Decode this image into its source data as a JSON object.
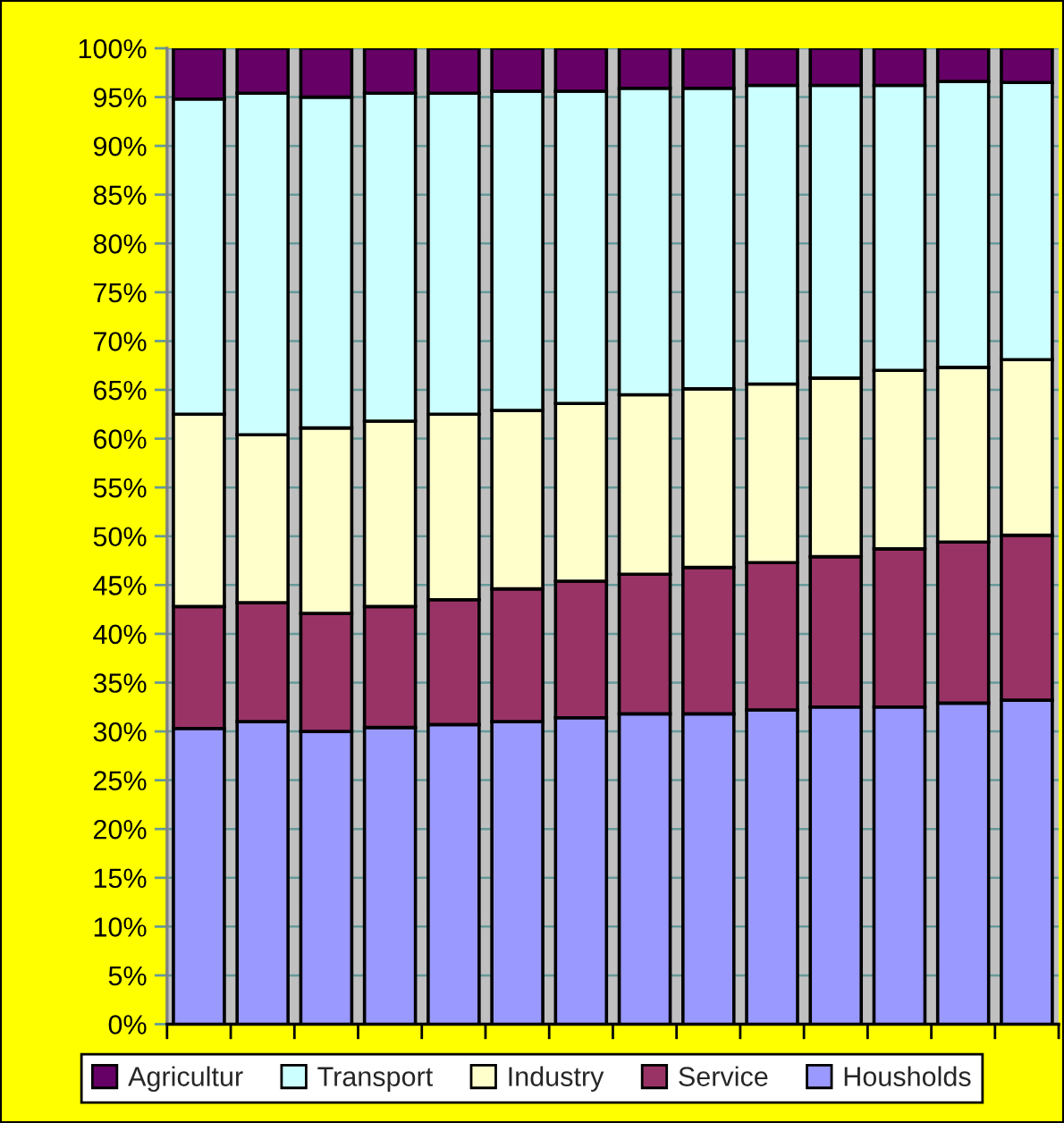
{
  "chart_data": {
    "type": "bar",
    "stacked": true,
    "categories": [
      null,
      null,
      null,
      null,
      null,
      null,
      null,
      null,
      null,
      null,
      null,
      null,
      null,
      null
    ],
    "series": [
      {
        "name": "Housholds",
        "color": "#9999ff",
        "values": [
          30.3,
          31.0,
          30.0,
          30.4,
          30.7,
          31.0,
          31.4,
          31.8,
          31.8,
          32.2,
          32.5,
          32.5,
          32.9,
          33.2
        ]
      },
      {
        "name": "Service",
        "color": "#993366",
        "values": [
          12.5,
          12.2,
          12.1,
          12.4,
          12.8,
          13.6,
          14.0,
          14.3,
          15.0,
          15.1,
          15.4,
          16.2,
          16.5,
          16.9
        ]
      },
      {
        "name": "Industry",
        "color": "#ffffcc",
        "values": [
          19.7,
          17.2,
          19.0,
          19.0,
          19.0,
          18.3,
          18.2,
          18.4,
          18.3,
          18.3,
          18.3,
          18.3,
          17.9,
          18.0
        ]
      },
      {
        "name": "Transport",
        "color": "#ccffff",
        "values": [
          32.3,
          35.0,
          33.9,
          33.6,
          32.9,
          32.7,
          32.0,
          31.4,
          30.8,
          30.6,
          30.0,
          29.2,
          29.3,
          28.4
        ]
      },
      {
        "name": "Agricultur",
        "color": "#660066",
        "values": [
          5.2,
          4.6,
          5.0,
          4.6,
          4.6,
          4.4,
          4.4,
          4.1,
          4.1,
          3.8,
          3.8,
          3.8,
          3.4,
          3.5
        ]
      }
    ],
    "ylim": [
      0,
      100
    ],
    "yticks": [
      {
        "value": 0,
        "label": "0%"
      },
      {
        "value": 5,
        "label": "5%"
      },
      {
        "value": 10,
        "label": "10%"
      },
      {
        "value": 15,
        "label": "15%"
      },
      {
        "value": 20,
        "label": "20%"
      },
      {
        "value": 25,
        "label": "25%"
      },
      {
        "value": 30,
        "label": "30%"
      },
      {
        "value": 35,
        "label": "35%"
      },
      {
        "value": 40,
        "label": "40%"
      },
      {
        "value": 45,
        "label": "45%"
      },
      {
        "value": 50,
        "label": "50%"
      },
      {
        "value": 55,
        "label": "55%"
      },
      {
        "value": 60,
        "label": "60%"
      },
      {
        "value": 65,
        "label": "65%"
      },
      {
        "value": 70,
        "label": "70%"
      },
      {
        "value": 75,
        "label": "75%"
      },
      {
        "value": 80,
        "label": "80%"
      },
      {
        "value": 85,
        "label": "85%"
      },
      {
        "value": 90,
        "label": "90%"
      },
      {
        "value": 95,
        "label": "95%"
      },
      {
        "value": 100,
        "label": "100%"
      }
    ],
    "grid": "y",
    "legend": "bottom"
  }
}
